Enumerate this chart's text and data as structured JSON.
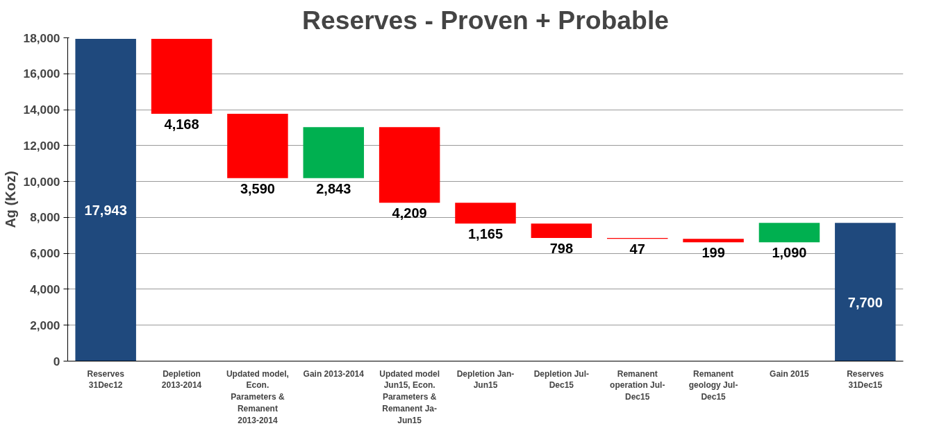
{
  "chart_data": {
    "type": "bar",
    "title": "Reserves - Proven + Probable",
    "ylabel": "Ag (Koz)",
    "categories": [
      "Reserves 31Dec12",
      "Depletion 2013-2014",
      "Updated model, Econ. Parameters & Remanent 2013-2014",
      "Gain 2013-2014",
      "Updated model Jun15, Econ. Parameters & Remanent Ja-Jun15",
      "Depletion Jan-Jun15",
      "Depletion Jul-Dec15",
      "Remanent operation Jul-Dec15",
      "Remanent geology Jul-Dec15",
      "Gain 2015",
      "Reserves 31Dec15"
    ],
    "values": [
      17943,
      4168,
      3590,
      2843,
      4209,
      1165,
      798,
      47,
      199,
      1090,
      7700
    ],
    "base": [
      0,
      13775,
      10185,
      10185,
      8819,
      7654,
      6856,
      6809,
      6610,
      6610,
      0
    ],
    "colors": [
      "#1f497d",
      "#ff0000",
      "#ff0000",
      "#00b050",
      "#ff0000",
      "#ff0000",
      "#ff0000",
      "#ff0000",
      "#ff0000",
      "#00b050",
      "#1f497d"
    ],
    "value_labels": [
      "17,943",
      "4,168",
      "3,590",
      "2,843",
      "4,209",
      "1,165",
      "798",
      "47",
      "199",
      "1,090",
      "7,700"
    ],
    "ylim": [
      0,
      18000
    ],
    "yticks": [
      0,
      {
        "value": 2000,
        "label": "2,000"
      },
      {
        "value": 4000,
        "label": "4,000"
      },
      {
        "value": 6000,
        "label": "6,000"
      },
      {
        "value": 8000,
        "label": "8,000"
      },
      {
        "value": 10000,
        "label": "10,000"
      },
      {
        "value": 12000,
        "label": "12,000"
      },
      {
        "value": 14000,
        "label": "14,000"
      },
      {
        "value": 16000,
        "label": "16,000"
      },
      {
        "value": 18000,
        "label": "18,000"
      }
    ],
    "grid": "y"
  }
}
